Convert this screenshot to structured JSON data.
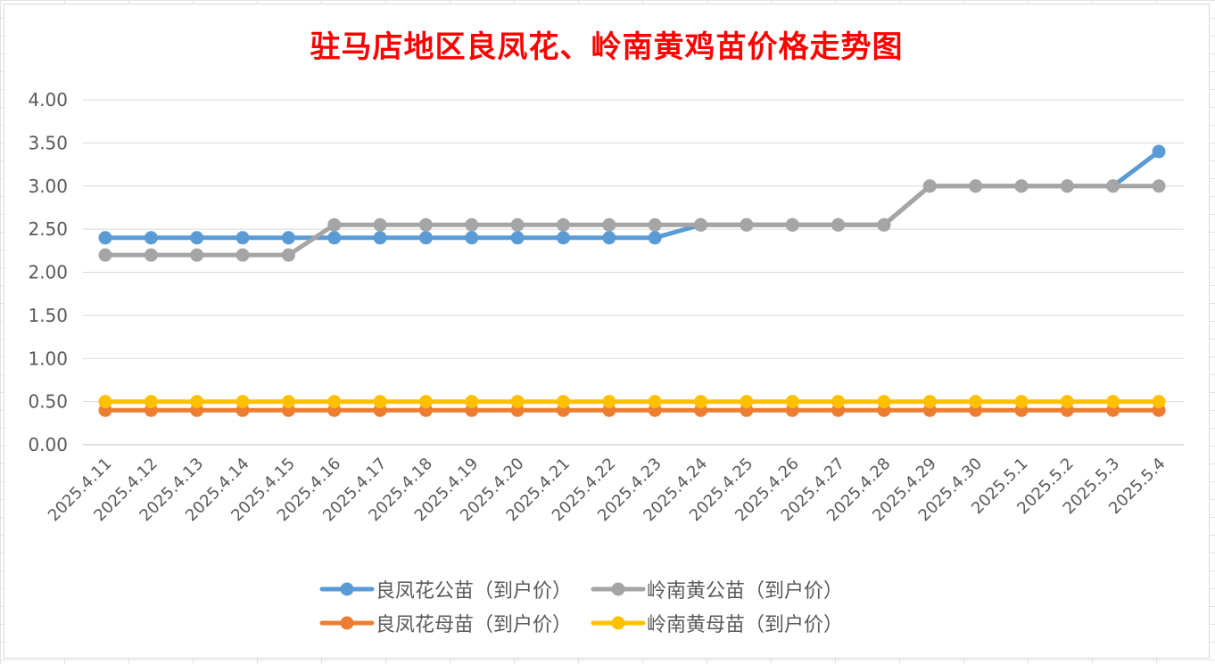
{
  "chart_data": {
    "type": "line",
    "title": "驻马店地区良凤花、岭南黄鸡苗价格走势图",
    "xlabel": "",
    "ylabel": "",
    "ylim": [
      0,
      4
    ],
    "ytick_step": 0.5,
    "y_tick_labels": [
      "0.00",
      "0.50",
      "1.00",
      "1.50",
      "2.00",
      "2.50",
      "3.00",
      "3.50",
      "4.00"
    ],
    "grid": true,
    "legend_position": "bottom",
    "categories": [
      "2025.4.11",
      "2025.4.12",
      "2025.4.13",
      "2025.4.14",
      "2025.4.15",
      "2025.4.16",
      "2025.4.17",
      "2025.4.18",
      "2025.4.19",
      "2025.4.20",
      "2025.4.21",
      "2025.4.22",
      "2025.4.23",
      "2025.4.24",
      "2025.4.25",
      "2025.4.26",
      "2025.4.27",
      "2025.4.28",
      "2025.4.29",
      "2025.4.30",
      "2025.5.1",
      "2025.5.2",
      "2025.5.3",
      "2025.5.4"
    ],
    "series": [
      {
        "name": "良凤花公苗（到户价）",
        "color": "#5b9bd5",
        "values": [
          2.4,
          2.4,
          2.4,
          2.4,
          2.4,
          2.4,
          2.4,
          2.4,
          2.4,
          2.4,
          2.4,
          2.4,
          2.4,
          2.55,
          2.55,
          2.55,
          2.55,
          2.55,
          3.0,
          3.0,
          3.0,
          3.0,
          3.0,
          3.4
        ]
      },
      {
        "name": "良凤花母苗（到户价）",
        "color": "#ed7d31",
        "values": [
          0.4,
          0.4,
          0.4,
          0.4,
          0.4,
          0.4,
          0.4,
          0.4,
          0.4,
          0.4,
          0.4,
          0.4,
          0.4,
          0.4,
          0.4,
          0.4,
          0.4,
          0.4,
          0.4,
          0.4,
          0.4,
          0.4,
          0.4,
          0.4
        ]
      },
      {
        "name": "岭南黄公苗（到户价）",
        "color": "#a5a5a5",
        "values": [
          2.2,
          2.2,
          2.2,
          2.2,
          2.2,
          2.55,
          2.55,
          2.55,
          2.55,
          2.55,
          2.55,
          2.55,
          2.55,
          2.55,
          2.55,
          2.55,
          2.55,
          2.55,
          3.0,
          3.0,
          3.0,
          3.0,
          3.0,
          3.0
        ]
      },
      {
        "name": "岭南黄母苗（到户价）",
        "color": "#ffc000",
        "values": [
          0.5,
          0.5,
          0.5,
          0.5,
          0.5,
          0.5,
          0.5,
          0.5,
          0.5,
          0.5,
          0.5,
          0.5,
          0.5,
          0.5,
          0.5,
          0.5,
          0.5,
          0.5,
          0.5,
          0.5,
          0.5,
          0.5,
          0.5,
          0.5
        ]
      }
    ]
  }
}
